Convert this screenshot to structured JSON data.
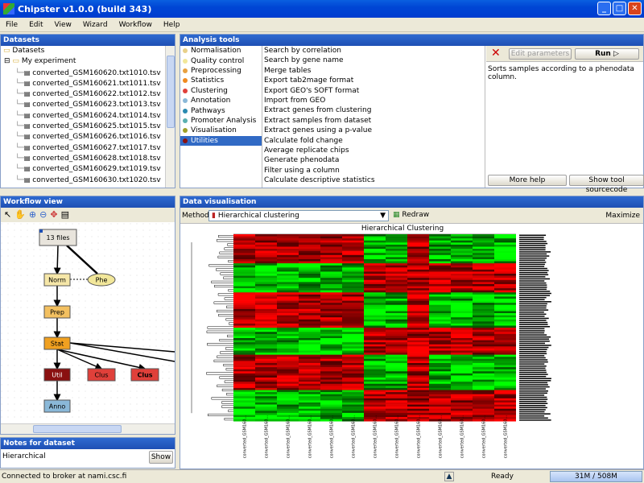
{
  "window": {
    "title": "Chipster v1.0.0 (build 343)"
  },
  "menu": [
    "File",
    "Edit",
    "View",
    "Wizard",
    "Workflow",
    "Help"
  ],
  "datasets": {
    "title": "Datasets",
    "root": "Datasets",
    "folder": "My experiment",
    "files": [
      "converted_GSM160620.txt1010.tsv",
      "converted_GSM160621.txt1011.tsv",
      "converted_GSM160622.txt1012.tsv",
      "converted_GSM160623.txt1013.tsv",
      "converted_GSM160624.txt1014.tsv",
      "converted_GSM160625.txt1015.tsv",
      "converted_GSM160626.txt1016.tsv",
      "converted_GSM160627.txt1017.tsv",
      "converted_GSM160628.txt1018.tsv",
      "converted_GSM160629.txt1019.tsv",
      "converted_GSM160630.txt1020.tsv"
    ]
  },
  "analysis": {
    "title": "Analysis tools",
    "categories": [
      {
        "label": "Normalisation",
        "color": "#e8d08a"
      },
      {
        "label": "Quality control",
        "color": "#f2e79a"
      },
      {
        "label": "Preprocessing",
        "color": "#e8a040"
      },
      {
        "label": "Statistics",
        "color": "#f08a20"
      },
      {
        "label": "Clustering",
        "color": "#e0403a"
      },
      {
        "label": "Annotation",
        "color": "#8ab8d8"
      },
      {
        "label": "Pathways",
        "color": "#2a8ab0"
      },
      {
        "label": "Promoter Analysis",
        "color": "#5ab0b0"
      },
      {
        "label": "Visualisation",
        "color": "#a0a028"
      },
      {
        "label": "Utilities",
        "color": "#8a1010"
      }
    ],
    "tools": [
      "Search by correlation",
      "Search by gene name",
      "Merge tables",
      "Export tab2mage format",
      "Export GEO's SOFT format",
      "Import from GEO",
      "Extract genes from clustering",
      "Extract samples from dataset",
      "Extract genes using a p-value",
      "Calculate fold change",
      "Average replicate chips",
      "Generate phenodata",
      "Filter using a column",
      "Calculate descriptive statistics"
    ],
    "edit_label": "Edit parameters",
    "run_label": "Run",
    "description": "Sorts samples according to a phenodata column.",
    "more_help": "More help",
    "show_source": "Show tool sourcecode"
  },
  "workflow": {
    "title": "Workflow view",
    "nodes": [
      "13 files",
      "Norm",
      "Phe",
      "Prep",
      "Stat",
      "Util",
      "Clus",
      "Clus",
      "Anno"
    ]
  },
  "notes": {
    "title": "Notes for dataset",
    "text": "Hierarchical",
    "show": "Show"
  },
  "viz": {
    "title": "Data visualisation",
    "method_label": "Method:",
    "method_value": "Hierarchical clustering",
    "redraw": "Redraw",
    "maximize": "Maximize",
    "chart_title": "Hierarchical Clustering",
    "col_labels": [
      "converted_GSM160...",
      "converted_GSM160...",
      "converted_GSM160...",
      "converted_GSM160...",
      "converted_GSM160...",
      "converted_GSM160...",
      "converted_GSM160...",
      "converted_GSM160...",
      "converted_GSM160...",
      "converted_GSM160...",
      "converted_GSM160...",
      "converted_GSM160...",
      "converted_GSM160..."
    ]
  },
  "status": {
    "connection": "Connected to broker at nami.csc.fi",
    "state": "Ready",
    "memory": "31M / 508M"
  }
}
